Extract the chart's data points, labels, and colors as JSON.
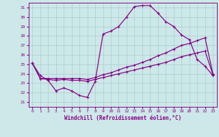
{
  "background_color": "#cce8e8",
  "grid_color": "#aacccc",
  "line_color": "#880088",
  "xlabel": "Windchill (Refroidissement éolien,°C)",
  "xlabel_color": "#880088",
  "ylim": [
    20.5,
    31.5
  ],
  "xlim": [
    -0.5,
    23.5
  ],
  "yticks": [
    21,
    22,
    23,
    24,
    25,
    26,
    27,
    28,
    29,
    30,
    31
  ],
  "xticks": [
    0,
    1,
    2,
    3,
    4,
    5,
    6,
    7,
    8,
    9,
    10,
    11,
    12,
    13,
    14,
    15,
    16,
    17,
    18,
    19,
    20,
    21,
    22,
    23
  ],
  "line1_x": [
    0,
    1,
    2,
    3,
    4,
    5,
    6,
    7,
    8,
    9,
    10,
    11,
    12,
    13,
    14,
    15,
    16,
    17,
    18,
    19,
    20,
    21,
    22,
    23
  ],
  "line1_y": [
    25.1,
    23.8,
    23.3,
    22.2,
    22.5,
    22.2,
    21.7,
    21.5,
    23.2,
    28.2,
    28.5,
    29.0,
    30.0,
    31.1,
    31.2,
    31.2,
    30.4,
    29.5,
    29.0,
    28.1,
    27.6,
    25.5,
    24.8,
    23.8
  ],
  "line2_x": [
    0,
    1,
    2,
    3,
    4,
    5,
    6,
    7,
    8,
    9,
    10,
    11,
    12,
    13,
    14,
    15,
    16,
    17,
    18,
    19,
    20,
    21,
    22,
    23
  ],
  "line2_y": [
    25.1,
    23.5,
    23.5,
    23.5,
    23.5,
    23.5,
    23.5,
    23.4,
    23.6,
    23.9,
    24.1,
    24.4,
    24.7,
    24.9,
    25.2,
    25.5,
    25.9,
    26.2,
    26.6,
    27.0,
    27.2,
    27.5,
    27.8,
    24.0
  ],
  "line3_x": [
    0,
    1,
    2,
    3,
    4,
    5,
    6,
    7,
    8,
    9,
    10,
    11,
    12,
    13,
    14,
    15,
    16,
    17,
    18,
    19,
    20,
    21,
    22,
    23
  ],
  "line3_y": [
    25.1,
    23.5,
    23.4,
    23.3,
    23.4,
    23.3,
    23.3,
    23.2,
    23.4,
    23.6,
    23.8,
    24.0,
    24.2,
    24.4,
    24.6,
    24.8,
    25.0,
    25.2,
    25.5,
    25.8,
    26.0,
    26.2,
    26.4,
    23.9
  ]
}
